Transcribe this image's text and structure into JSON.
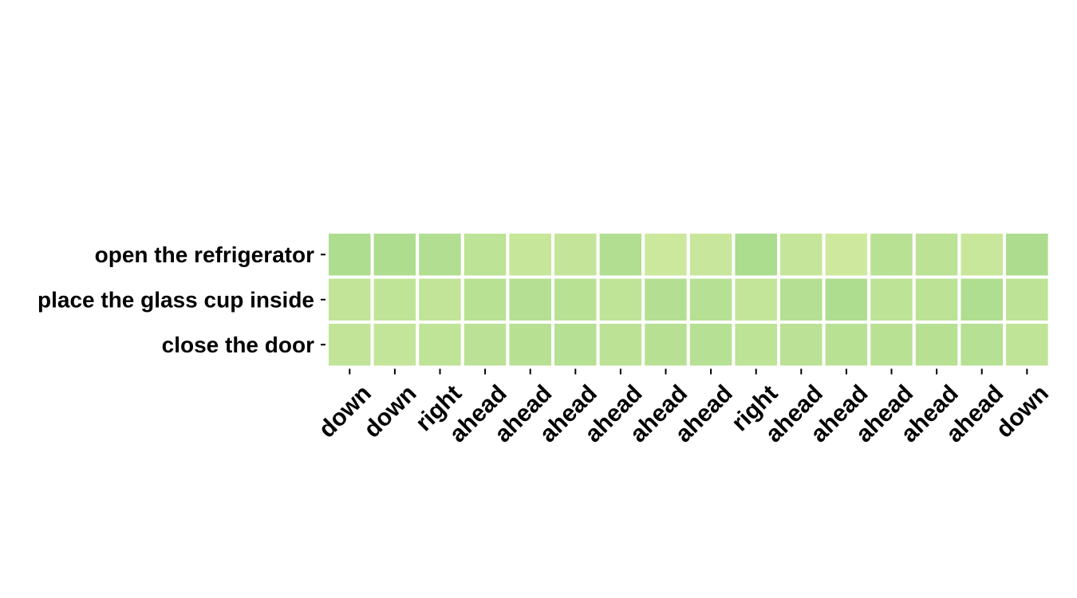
{
  "chart_data": {
    "type": "heatmap",
    "title": "",
    "xlabel": "",
    "ylabel": "",
    "rows": [
      "open the refrigerator",
      "place the glass cup inside",
      "close the door"
    ],
    "columns": [
      "down",
      "down",
      "right",
      "ahead",
      "ahead",
      "ahead",
      "ahead",
      "ahead",
      "ahead",
      "right",
      "ahead",
      "ahead",
      "ahead",
      "ahead",
      "ahead",
      "down"
    ],
    "values": [
      [
        0.8,
        0.78,
        0.74,
        0.5,
        0.32,
        0.36,
        0.74,
        0.2,
        0.26,
        0.84,
        0.34,
        0.16,
        0.6,
        0.52,
        0.28,
        0.82
      ],
      [
        0.4,
        0.44,
        0.42,
        0.6,
        0.66,
        0.6,
        0.44,
        0.68,
        0.64,
        0.38,
        0.66,
        0.8,
        0.5,
        0.54,
        0.76,
        0.5
      ],
      [
        0.42,
        0.38,
        0.46,
        0.56,
        0.62,
        0.64,
        0.52,
        0.62,
        0.64,
        0.5,
        0.56,
        0.6,
        0.58,
        0.62,
        0.64,
        0.44
      ]
    ],
    "colorscale": [
      "#d6eca2",
      "#a4d98a"
    ],
    "grid": false,
    "legend": "none"
  }
}
